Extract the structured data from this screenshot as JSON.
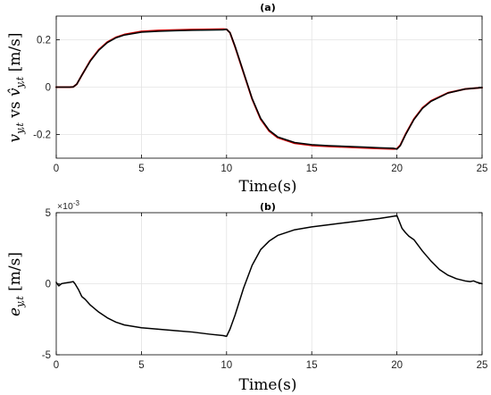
{
  "chart_data": [
    {
      "type": "line",
      "panel": "a",
      "title": "(a)",
      "xlabel": "Time(s)",
      "ylabel": "v_y,t vs v̂_y,t [m/s]",
      "ylabel_tex": {
        "a": "v",
        "a_sub": "y,t",
        "mid": " vs ",
        "b": "v̂",
        "b_sub": "y,t",
        "unit": " [m/s]"
      },
      "xlim": [
        0,
        25
      ],
      "ylim": [
        -0.3,
        0.3
      ],
      "xticks": [
        0,
        5,
        10,
        15,
        20,
        25
      ],
      "yticks": [
        -0.2,
        0,
        0.2
      ],
      "ytick_labels": [
        "-0.2",
        "0",
        "0.2"
      ],
      "grid": true,
      "series": [
        {
          "color": "#cc0000",
          "x": [
            0,
            0.8,
            1.0,
            1.2,
            1.5,
            2,
            2.5,
            3,
            3.5,
            4,
            5,
            6,
            7,
            8,
            9,
            9.8,
            10,
            10.2,
            10.5,
            11,
            11.5,
            12,
            12.5,
            13,
            14,
            15,
            16,
            17,
            18,
            19,
            19.8,
            20,
            20.2,
            20.5,
            21,
            21.5,
            22,
            23,
            24,
            25
          ],
          "y": [
            0,
            0,
            0.001,
            0.012,
            0.05,
            0.112,
            0.158,
            0.19,
            0.21,
            0.222,
            0.235,
            0.239,
            0.241,
            0.243,
            0.244,
            0.245,
            0.244,
            0.23,
            0.17,
            0.06,
            -0.05,
            -0.135,
            -0.185,
            -0.213,
            -0.237,
            -0.246,
            -0.25,
            -0.253,
            -0.256,
            -0.259,
            -0.261,
            -0.26,
            -0.245,
            -0.2,
            -0.135,
            -0.088,
            -0.058,
            -0.024,
            -0.008,
            -0.002
          ]
        },
        {
          "color": "#000000",
          "x": [
            0,
            0.8,
            1.0,
            1.2,
            1.5,
            2,
            2.5,
            3,
            3.5,
            4,
            5,
            6,
            7,
            8,
            9,
            9.8,
            10,
            10.2,
            10.5,
            11,
            11.5,
            12,
            12.5,
            13,
            14,
            15,
            16,
            17,
            18,
            19,
            19.8,
            20,
            20.2,
            20.5,
            21,
            21.5,
            22,
            23,
            24,
            25
          ],
          "y": [
            0,
            0,
            0.001,
            0.012,
            0.05,
            0.11,
            0.156,
            0.188,
            0.208,
            0.22,
            0.232,
            0.236,
            0.238,
            0.24,
            0.241,
            0.242,
            0.244,
            0.23,
            0.172,
            0.062,
            -0.048,
            -0.132,
            -0.182,
            -0.21,
            -0.234,
            -0.243,
            -0.247,
            -0.25,
            -0.253,
            -0.256,
            -0.258,
            -0.262,
            -0.247,
            -0.202,
            -0.137,
            -0.09,
            -0.06,
            -0.025,
            -0.008,
            -0.002
          ]
        }
      ]
    },
    {
      "type": "line",
      "panel": "b",
      "title": "(b)",
      "xlabel": "Time(s)",
      "ylabel": "e_y,t [m/s]",
      "ylabel_tex": {
        "a": "e",
        "a_sub": "y,t",
        "unit": " [m/s]"
      },
      "exponent_label": "×10",
      "exponent_power": "-3",
      "xlim": [
        0,
        25
      ],
      "ylim": [
        -5,
        5
      ],
      "xticks": [
        0,
        5,
        10,
        15,
        20,
        25
      ],
      "yticks": [
        -5,
        0,
        5
      ],
      "ytick_labels": [
        "-5",
        "0",
        "5"
      ],
      "grid": true,
      "series": [
        {
          "color": "#000000",
          "x": [
            0,
            0.15,
            0.3,
            0.5,
            0.8,
            1.0,
            1.1,
            1.3,
            1.5,
            1.7,
            2.0,
            2.5,
            3,
            3.5,
            4,
            5,
            6,
            7,
            8,
            9,
            9.8,
            10.0,
            10.2,
            10.5,
            11,
            11.5,
            12,
            12.5,
            13,
            14,
            15,
            16,
            17,
            18,
            19,
            19.8,
            20,
            20.1,
            20.3,
            20.5,
            20.7,
            21,
            21.5,
            22,
            22.5,
            23,
            23.5,
            24,
            24.3,
            24.5,
            24.7,
            25
          ],
          "y": [
            0.1,
            -0.15,
            0.0,
            0.05,
            0.1,
            0.15,
            0.0,
            -0.4,
            -0.9,
            -1.1,
            -1.5,
            -2.0,
            -2.4,
            -2.7,
            -2.9,
            -3.1,
            -3.2,
            -3.3,
            -3.4,
            -3.55,
            -3.65,
            -3.7,
            -3.2,
            -2.2,
            -0.3,
            1.3,
            2.4,
            3.0,
            3.4,
            3.8,
            4.0,
            4.15,
            4.3,
            4.45,
            4.6,
            4.75,
            4.8,
            4.5,
            3.9,
            3.6,
            3.35,
            3.1,
            2.3,
            1.6,
            1.0,
            0.6,
            0.35,
            0.2,
            0.15,
            0.2,
            0.1,
            0.0
          ]
        }
      ]
    }
  ]
}
